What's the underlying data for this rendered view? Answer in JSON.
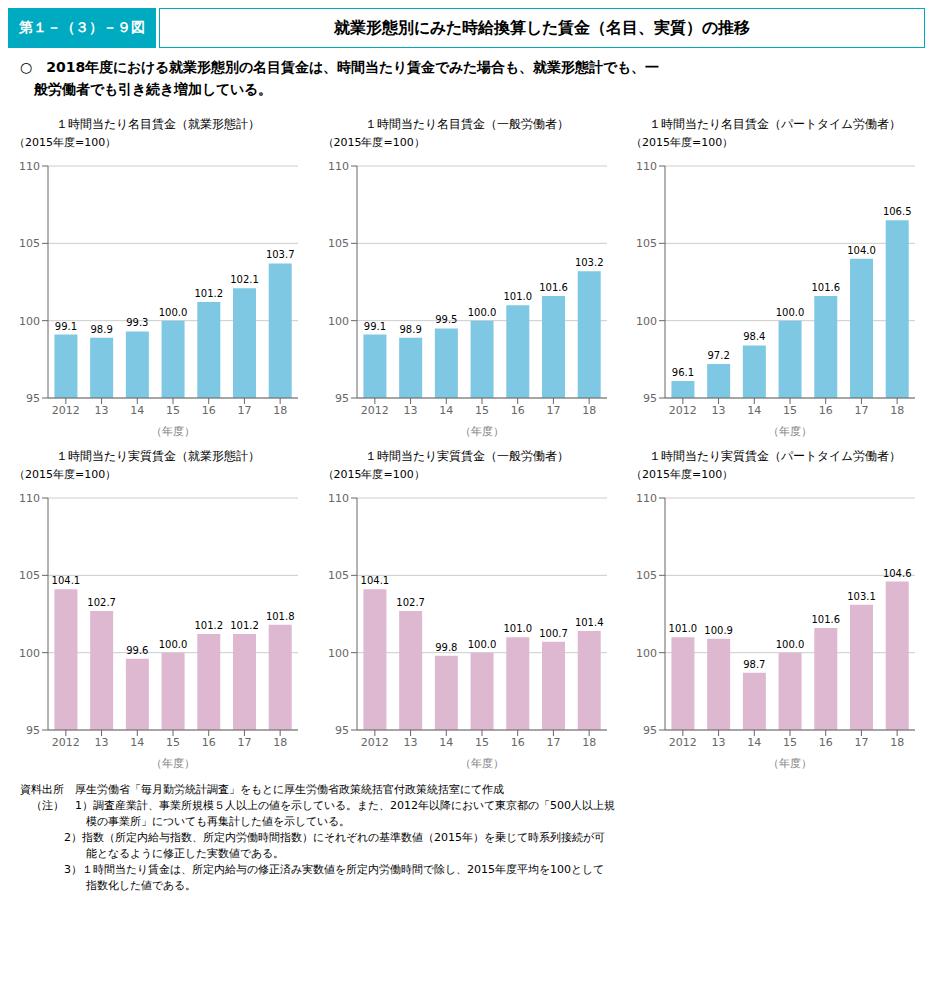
{
  "title_box": "第１－（３）－９図",
  "title": "就業形態別にみた時給換算した賃金（名目、実質）の推移",
  "header_color": "#00AAC0",
  "subtitle": [
    "○　2018年度における就業形態別の名目賃金は、時間当たり賃金でみた場合も、就業形態計でも、一",
    "　般労働者でも引き続き増加している。"
  ],
  "notes": [
    "資料出所　厚生労働省「毎月勤労統計調査」をもとに厚生労働省政策統括官付政策統括室にて作成",
    "　（注）　1）調査産業計、事業所規模５人以上の値を示している。また、2012年以降において東京都の「500人以上規",
    "　　　　　　模の事業所」についても再集計した値を示している。",
    "　　　　2）指数（所定内給与指数、所定内労働時間指数）にそれぞれの基準数値（2015年）を乗じて時系列接続が可",
    "　　　　　　能となるように修正した実数値である。",
    "　　　　3）１時間当たり賃金は、所定内給与の修正済み実数値を所定内労働時間で除し、2015年度平均を100として",
    "　　　　　　指数化した値である。"
  ],
  "chart_data": [
    {
      "type": "bar",
      "title": "１時間当たり名目賃金（就業形態計）",
      "subtitle": "（2015年度=100）",
      "x_label": "（年度）",
      "categories": [
        "2012",
        "13",
        "14",
        "15",
        "16",
        "17",
        "18"
      ],
      "values": [
        99.1,
        98.9,
        99.3,
        100.0,
        101.2,
        102.1,
        103.7
      ],
      "value_labels": [
        "99.1",
        "98.9",
        "99.3",
        "100.0",
        "101.2",
        "102.1",
        "103.7"
      ],
      "color": "#7EC8E3",
      "ylim": [
        95,
        110
      ],
      "yticks": [
        95,
        100,
        105,
        110
      ],
      "grid": true,
      "data_labels": true
    },
    {
      "type": "bar",
      "title": "１時間当たり名目賃金（一般労働者）",
      "subtitle": "（2015年度=100）",
      "x_label": "（年度）",
      "categories": [
        "2012",
        "13",
        "14",
        "15",
        "16",
        "17",
        "18"
      ],
      "values": [
        99.1,
        98.9,
        99.5,
        100.0,
        101.0,
        101.6,
        103.2
      ],
      "value_labels": [
        "99.1",
        "98.9",
        "99.5",
        "100.0",
        "101.0",
        "101.6",
        "103.2"
      ],
      "color": "#7EC8E3",
      "ylim": [
        95,
        110
      ],
      "yticks": [
        95,
        100,
        105,
        110
      ],
      "grid": true,
      "data_labels": true
    },
    {
      "type": "bar",
      "title": "１時間当たり名目賃金（パートタイム労働者）",
      "subtitle": "（2015年度=100）",
      "x_label": "（年度）",
      "categories": [
        "2012",
        "13",
        "14",
        "15",
        "16",
        "17",
        "18"
      ],
      "values": [
        96.1,
        97.2,
        98.4,
        100.0,
        101.6,
        104.0,
        106.5
      ],
      "value_labels": [
        "96.1",
        "97.2",
        "98.4",
        "100.0",
        "101.6",
        "104.0",
        "106.5"
      ],
      "color": "#7EC8E3",
      "ylim": [
        95,
        110
      ],
      "yticks": [
        95,
        100,
        105,
        110
      ],
      "grid": true,
      "data_labels": true
    },
    {
      "type": "bar",
      "title": "１時間当たり実質賃金（就業形態計）",
      "subtitle": "（2015年度=100）",
      "x_label": "（年度）",
      "categories": [
        "2012",
        "13",
        "14",
        "15",
        "16",
        "17",
        "18"
      ],
      "values": [
        104.1,
        102.7,
        99.6,
        100.0,
        101.2,
        101.2,
        101.8
      ],
      "value_labels": [
        "104.1",
        "102.7",
        "99.6",
        "100.0",
        "101.2",
        "101.2",
        "101.8"
      ],
      "color": "#DDB8D0",
      "ylim": [
        95,
        110
      ],
      "yticks": [
        95,
        100,
        105,
        110
      ],
      "grid": true,
      "data_labels": true
    },
    {
      "type": "bar",
      "title": "１時間当たり実質賃金（一般労働者）",
      "subtitle": "（2015年度=100）",
      "x_label": "（年度）",
      "categories": [
        "2012",
        "13",
        "14",
        "15",
        "16",
        "17",
        "18"
      ],
      "values": [
        104.1,
        102.7,
        99.8,
        100.0,
        101.0,
        100.7,
        101.4
      ],
      "value_labels": [
        "104.1",
        "102.7",
        "99.8",
        "100.0",
        "101.0",
        "100.7",
        "101.4"
      ],
      "color": "#DDB8D0",
      "ylim": [
        95,
        110
      ],
      "yticks": [
        95,
        100,
        105,
        110
      ],
      "grid": true,
      "data_labels": true
    },
    {
      "type": "bar",
      "title": "１時間当たり実質賃金（パートタイム労働者）",
      "subtitle": "（2015年度=100）",
      "x_label": "（年度）",
      "categories": [
        "2012",
        "13",
        "14",
        "15",
        "16",
        "17",
        "18"
      ],
      "values": [
        101.0,
        100.9,
        98.7,
        100.0,
        101.6,
        103.1,
        104.6
      ],
      "value_labels": [
        "101.0",
        "100.9",
        "98.7",
        "100.0",
        "101.6",
        "103.1",
        "104.6"
      ],
      "color": "#DDB8D0",
      "ylim": [
        95,
        110
      ],
      "yticks": [
        95,
        100,
        105,
        110
      ],
      "grid": true,
      "data_labels": true
    }
  ]
}
